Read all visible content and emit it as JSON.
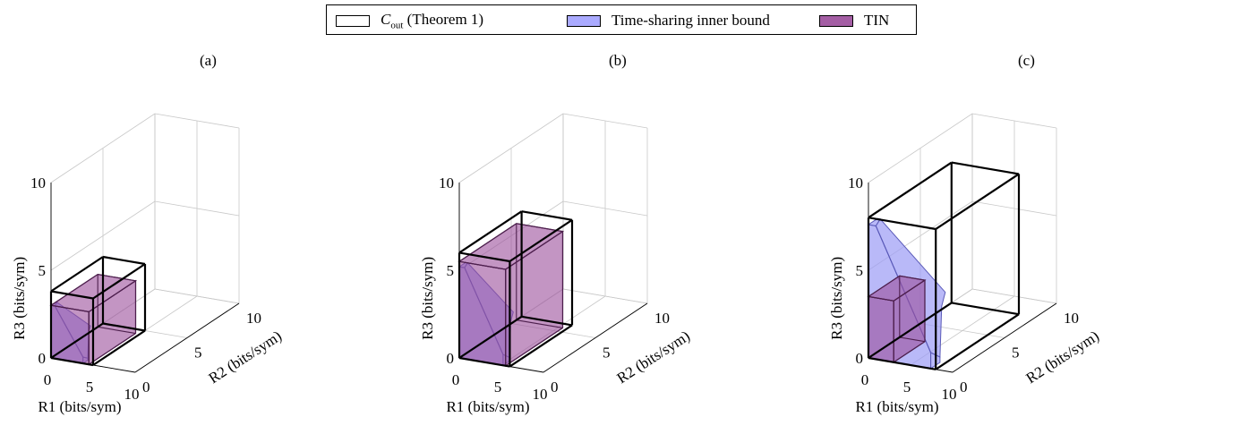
{
  "legend": {
    "items": [
      {
        "label_main": "C",
        "label_sub": "out",
        "label_rest": "(Theorem 1)",
        "fill": "#ffffff",
        "stroke": "#000000"
      },
      {
        "label": "Time-sharing inner bound",
        "fill": "#aaaaff",
        "stroke": "#000000"
      },
      {
        "label": "TIN",
        "fill": "#a45ea4",
        "stroke": "#000000"
      }
    ]
  },
  "colors": {
    "outer_bound_edge": "#000000",
    "time_sharing_fill": "#9b9bf5",
    "time_sharing_edge": "#5a5ab8",
    "tin_fill": "#9b4f9b",
    "tin_edge": "#4d1f4d",
    "grid": "#c8c8c8"
  },
  "chart_data": [
    {
      "panel": "(a)",
      "type": "3d-region",
      "xlabel": "R1 (bits/sym)",
      "ylabel": "R2 (bits/sym)",
      "zlabel": "R3 (bits/sym)",
      "xlim": [
        0,
        10
      ],
      "ylim": [
        0,
        10
      ],
      "zlim": [
        0,
        10
      ],
      "xticks": [
        0,
        5,
        10
      ],
      "yticks": [
        0,
        5,
        10
      ],
      "zticks": [
        0,
        5,
        10
      ],
      "grid": true,
      "outer_bound_box": [
        5,
        5,
        3.8
      ],
      "tin_box": [
        4.5,
        4.5,
        3
      ],
      "time_sharing_simplex": [
        3.8,
        3.8,
        3
      ],
      "time_sharing_sum_limit": 3.4
    },
    {
      "panel": "(b)",
      "type": "3d-region",
      "xlabel": "R1 (bits/sym)",
      "ylabel": "R2 (bits/sym)",
      "zlabel": "R3 (bits/sym)",
      "xlim": [
        0,
        10
      ],
      "ylim": [
        0,
        10
      ],
      "zlim": [
        0,
        10
      ],
      "xticks": [
        0,
        5,
        10
      ],
      "yticks": [
        0,
        5,
        10
      ],
      "zticks": [
        0,
        5,
        10
      ],
      "grid": true,
      "outer_bound_box": [
        6,
        6,
        6
      ],
      "tin_box": [
        5.5,
        5.5,
        5.5
      ],
      "time_sharing_simplex": [
        5.2,
        5.2,
        5.2
      ],
      "time_sharing_sum_limit": 5.2
    },
    {
      "panel": "(c)",
      "type": "3d-region",
      "xlabel": "R1 (bits/sym)",
      "ylabel": "R2 (bits/sym)",
      "zlabel": "R3 (bits/sym)",
      "xlim": [
        0,
        10
      ],
      "ylim": [
        0,
        10
      ],
      "zlim": [
        0,
        10
      ],
      "xticks": [
        0,
        5,
        10
      ],
      "yticks": [
        0,
        5,
        10
      ],
      "zticks": [
        0,
        5,
        10
      ],
      "grid": true,
      "outer_bound_box": [
        8,
        8,
        8
      ],
      "tin_box": [
        3,
        3,
        3.5
      ],
      "time_sharing_simplex": [
        7.4,
        7.4,
        7.6
      ],
      "time_sharing_sum_limit": 7.4
    }
  ]
}
